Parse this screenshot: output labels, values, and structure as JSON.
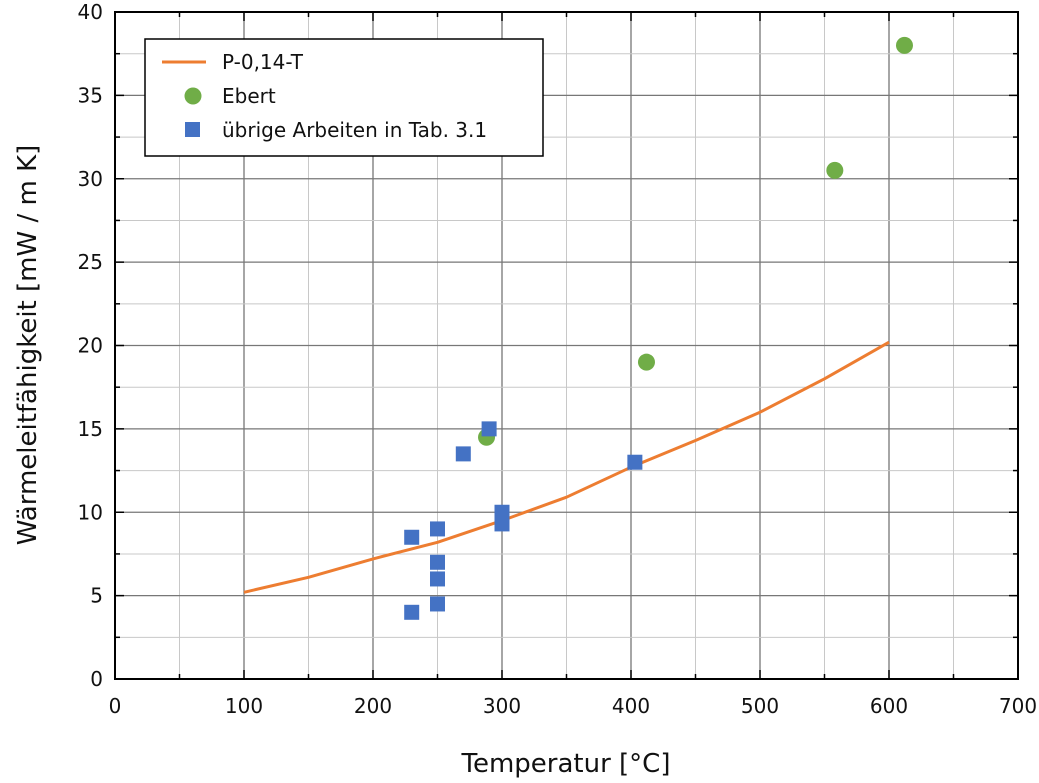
{
  "chart_data": {
    "type": "scatter",
    "title": "",
    "xlabel": "Temperatur [°C]",
    "ylabel": "Wärmeleitfähigkeit [mW / m K]",
    "xlim": [
      0,
      700
    ],
    "ylim": [
      0,
      40
    ],
    "xticks": [
      "0",
      "100",
      "200",
      "300",
      "400",
      "500",
      "600",
      "700"
    ],
    "yticks": [
      "0",
      "5",
      "10",
      "15",
      "20",
      "25",
      "30",
      "35",
      "40"
    ],
    "grid": true,
    "legend_position": "top-left",
    "series": [
      {
        "name": "P-0,14-T",
        "kind": "line",
        "color": "#ED7D31",
        "points": [
          [
            100,
            5.2
          ],
          [
            150,
            6.1
          ],
          [
            200,
            7.2
          ],
          [
            250,
            8.2
          ],
          [
            300,
            9.5
          ],
          [
            350,
            10.9
          ],
          [
            400,
            12.7
          ],
          [
            450,
            14.3
          ],
          [
            500,
            16.0
          ],
          [
            550,
            18.0
          ],
          [
            600,
            20.2
          ]
        ]
      },
      {
        "name": "Ebert",
        "kind": "circle",
        "color": "#70AD47",
        "points": [
          [
            288,
            14.5
          ],
          [
            412,
            19.0
          ],
          [
            558,
            30.5
          ],
          [
            612,
            38.0
          ]
        ]
      },
      {
        "name": "übrige Arbeiten in Tab. 3.1",
        "kind": "square",
        "color": "#4472C4",
        "points": [
          [
            230,
            4.0
          ],
          [
            230,
            8.5
          ],
          [
            250,
            4.5
          ],
          [
            250,
            6.0
          ],
          [
            250,
            7.0
          ],
          [
            250,
            9.0
          ],
          [
            270,
            13.5
          ],
          [
            290,
            15.0
          ],
          [
            300,
            9.3
          ],
          [
            300,
            10.0
          ],
          [
            403,
            13.0
          ]
        ]
      }
    ]
  }
}
